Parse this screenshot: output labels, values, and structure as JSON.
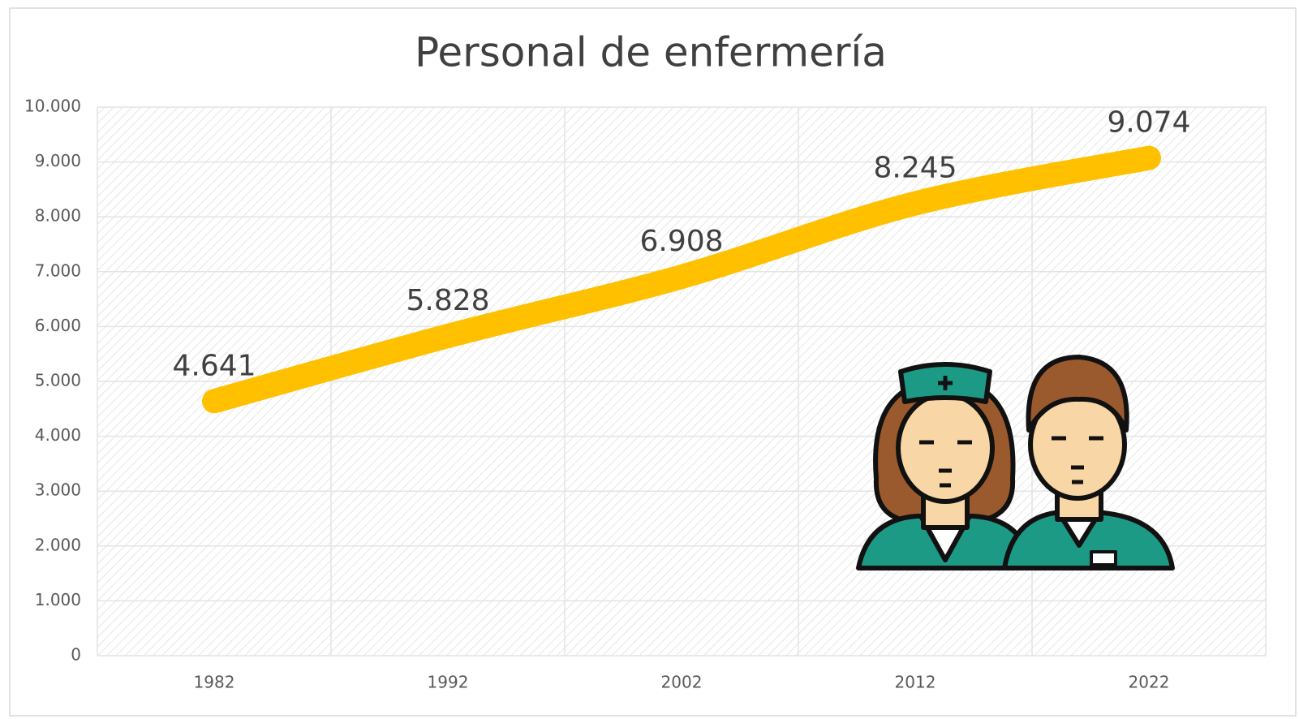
{
  "chart_data": {
    "type": "line",
    "title": "Personal de enfermería",
    "categories": [
      "1982",
      "1992",
      "2002",
      "2012",
      "2022"
    ],
    "values": [
      4641,
      5828,
      6908,
      8245,
      9074
    ],
    "value_labels": [
      "4.641",
      "5.828",
      "6.908",
      "8.245",
      "9.074"
    ],
    "color": "#ffc000",
    "ylim": [
      0,
      10000
    ],
    "yticks": [
      0,
      {
        "value": 1000,
        "label": "1.000"
      },
      {
        "value": 2000,
        "label": "2.000"
      },
      {
        "value": 3000,
        "label": "3.000"
      },
      {
        "value": 4000,
        "label": "4.000"
      },
      {
        "value": 5000,
        "label": "5.000"
      },
      {
        "value": 6000,
        "label": "6.000"
      },
      {
        "value": 7000,
        "label": "7.000"
      },
      {
        "value": 8000,
        "label": "8.000"
      },
      {
        "value": 9000,
        "label": "9.000"
      },
      {
        "value": 10000,
        "label": "10.000"
      }
    ],
    "grid": true
  }
}
